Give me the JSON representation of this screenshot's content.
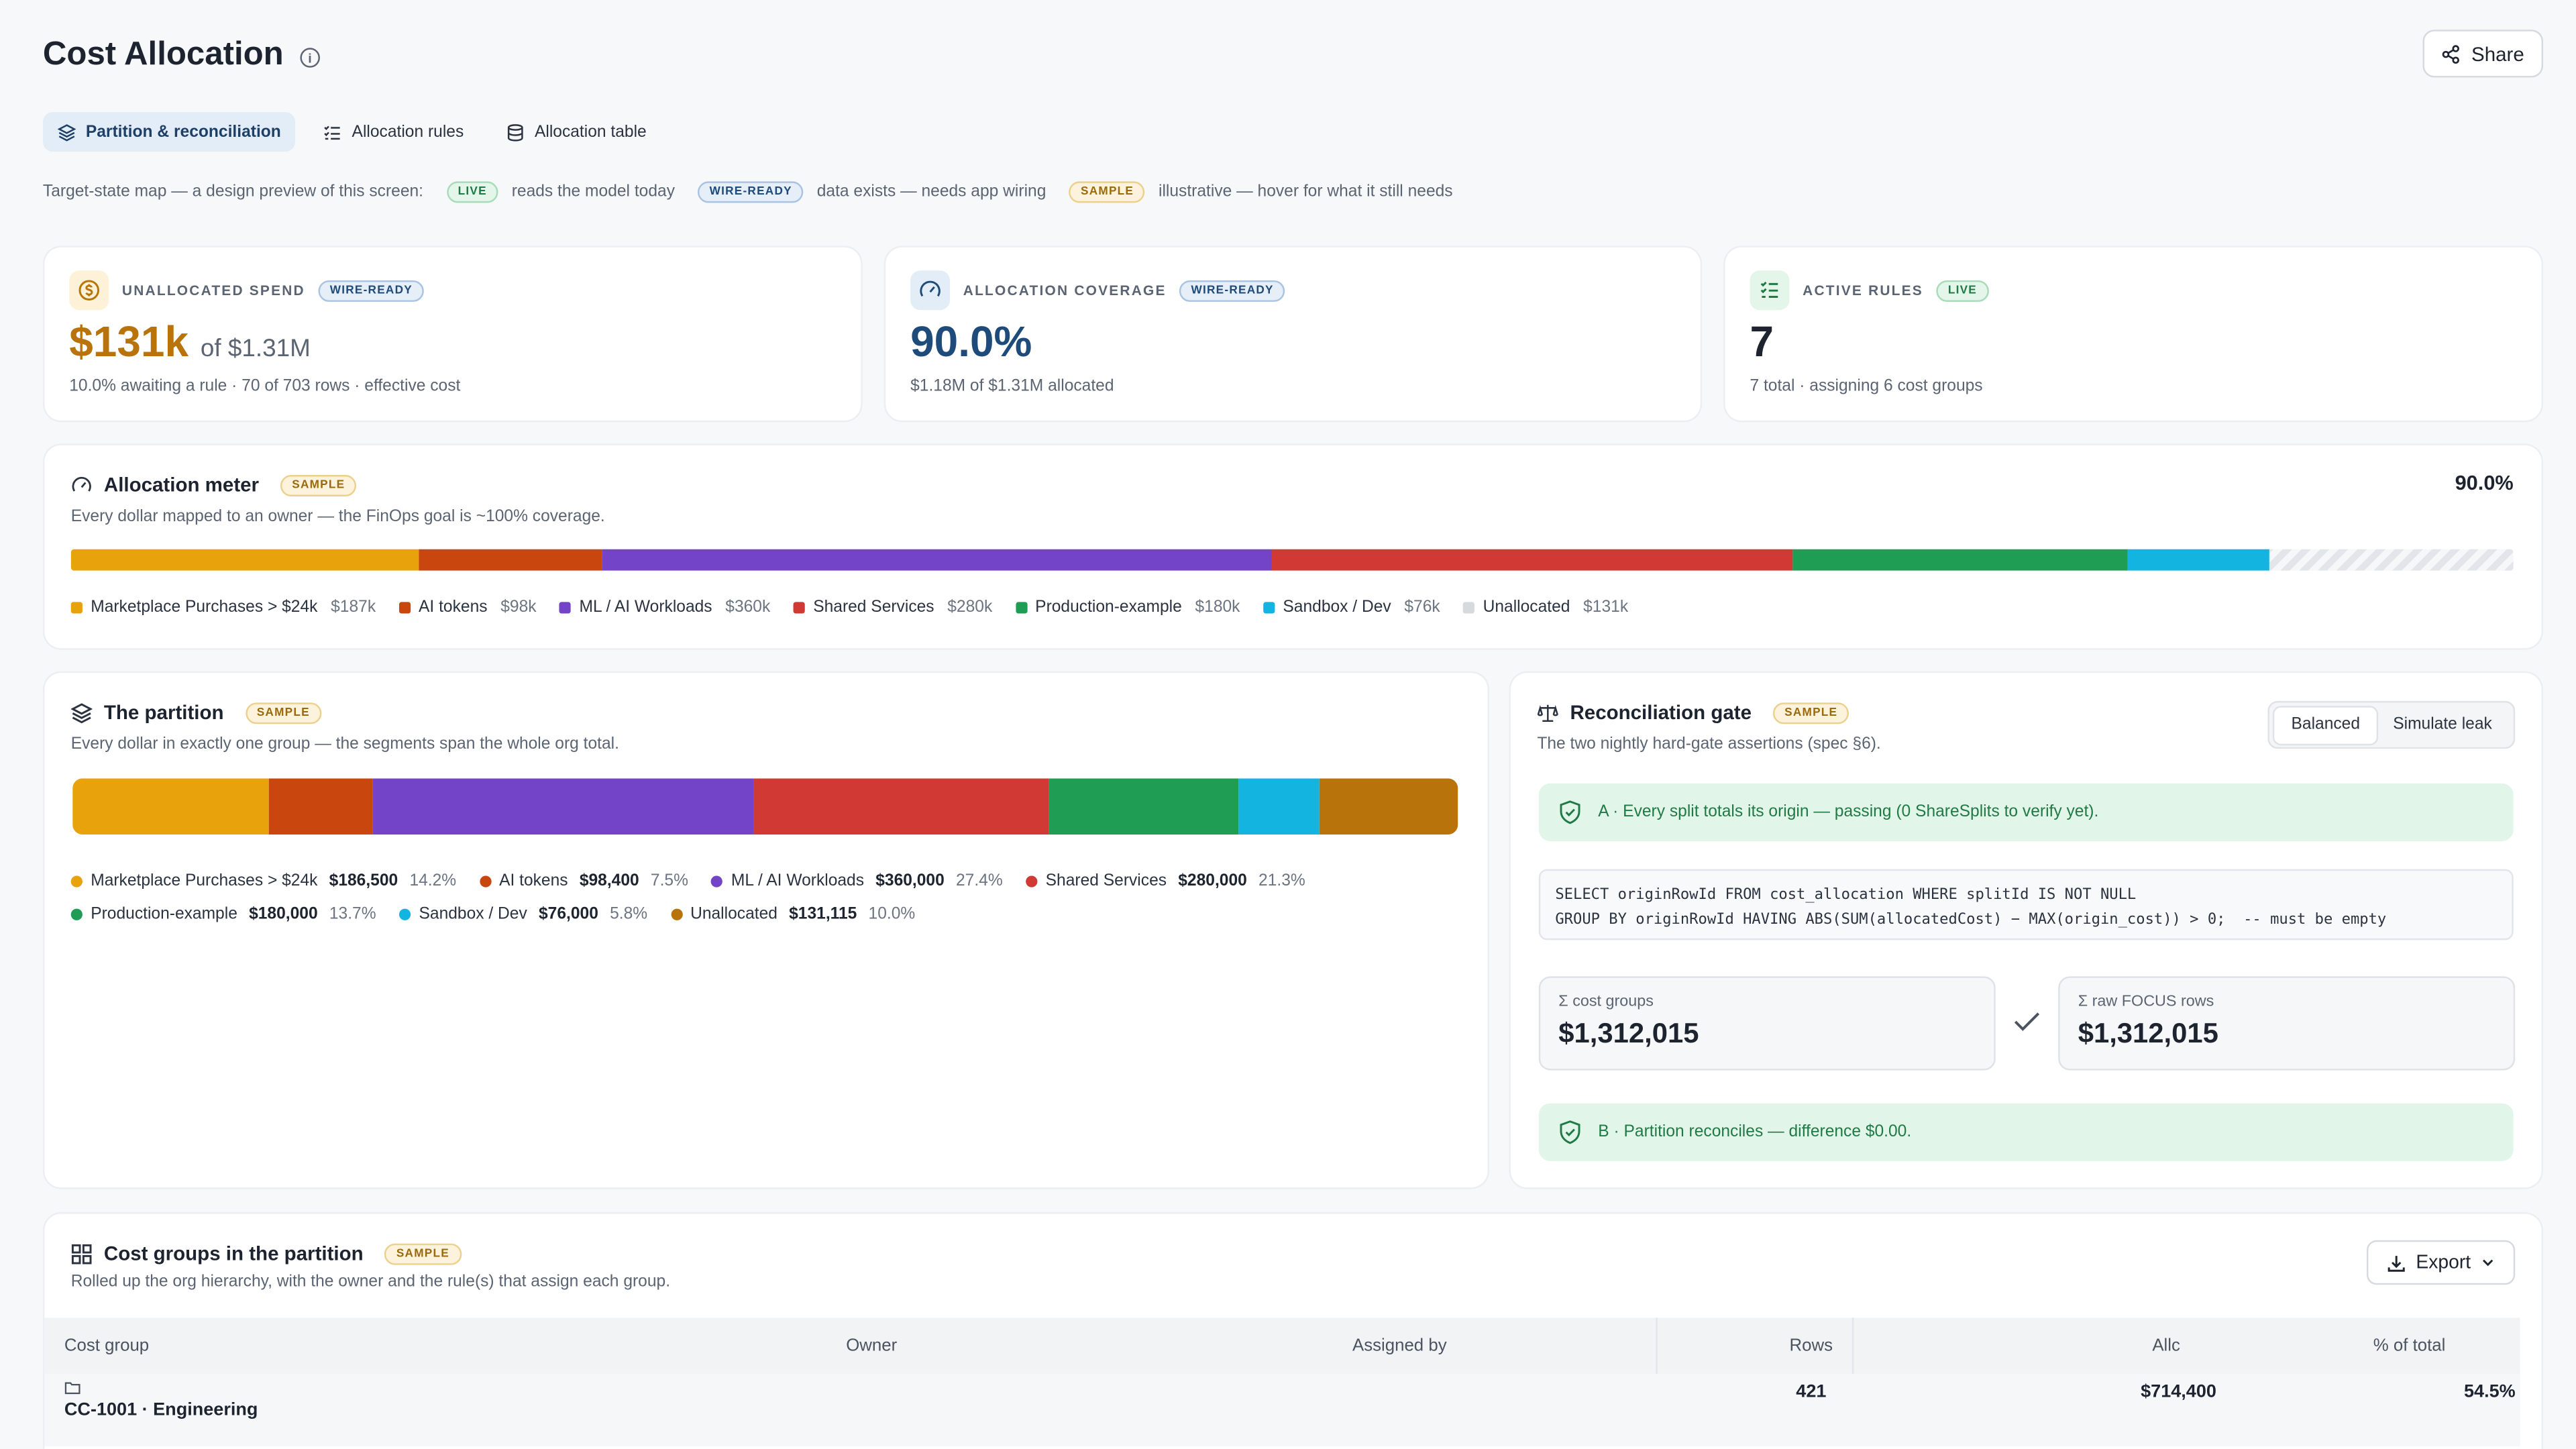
{
  "header": {
    "title": "Cost Allocation",
    "share_label": "Share"
  },
  "tabs": [
    {
      "label": "Partition & reconciliation",
      "active": true
    },
    {
      "label": "Allocation rules",
      "active": false
    },
    {
      "label": "Allocation table",
      "active": false
    }
  ],
  "legend_line": {
    "intro": "Target-state map — a design preview of this screen:",
    "live": {
      "badge": "LIVE",
      "text": "reads the model today"
    },
    "wire": {
      "badge": "WIRE-READY",
      "text": "data exists — needs app wiring"
    },
    "sample": {
      "badge": "SAMPLE",
      "text": "illustrative — hover for what it still needs"
    }
  },
  "kpis": [
    {
      "label": "UNALLOCATED SPEND",
      "badge": "WIRE-READY",
      "value": "$131k",
      "of": "of $1.31M",
      "sub": "10.0% awaiting a rule · 70 of 703 rows · effective cost",
      "color": "#b8740a"
    },
    {
      "label": "ALLOCATION COVERAGE",
      "badge": "WIRE-READY",
      "value": "90.0%",
      "sub": "$1.18M of $1.31M allocated",
      "color": "#1e4b7a"
    },
    {
      "label": "ACTIVE RULES",
      "badge": "LIVE",
      "value": "7",
      "sub": "7 total · assigning 6 cost groups",
      "color": "#1d2430"
    }
  ],
  "meter": {
    "title": "Allocation meter",
    "badge": "SAMPLE",
    "subtitle": "Every dollar mapped to an owner — the FinOps goal is ~100% coverage.",
    "percent": "90.0%",
    "items": [
      {
        "name": "Marketplace Purchases > $24k",
        "value": "$187k",
        "amount": 186500,
        "color": "#e8a20c"
      },
      {
        "name": "AI tokens",
        "value": "$98k",
        "amount": 98400,
        "color": "#c9460f"
      },
      {
        "name": "ML / AI Workloads",
        "value": "$360k",
        "amount": 360000,
        "color": "#7444c8"
      },
      {
        "name": "Shared Services",
        "value": "$280k",
        "amount": 280000,
        "color": "#d13a34"
      },
      {
        "name": "Production-example",
        "value": "$180k",
        "amount": 180000,
        "color": "#1f9d55"
      },
      {
        "name": "Sandbox / Dev",
        "value": "$76k",
        "amount": 76000,
        "color": "#14b4e0"
      },
      {
        "name": "Unallocated",
        "value": "$131k",
        "amount": 131115,
        "color": "#d6d9de"
      }
    ]
  },
  "partition": {
    "title": "The partition",
    "badge": "SAMPLE",
    "subtitle": "Every dollar in exactly one group — the segments span the whole org total.",
    "items": [
      {
        "name": "Marketplace Purchases > $24k",
        "amount_label": "$186,500",
        "pct": "14.2%",
        "amount": 186500,
        "color": "#e8a20c"
      },
      {
        "name": "AI tokens",
        "amount_label": "$98,400",
        "pct": "7.5%",
        "amount": 98400,
        "color": "#c9460f"
      },
      {
        "name": "ML / AI Workloads",
        "amount_label": "$360,000",
        "pct": "27.4%",
        "amount": 360000,
        "color": "#7444c8"
      },
      {
        "name": "Shared Services",
        "amount_label": "$280,000",
        "pct": "21.3%",
        "amount": 280000,
        "color": "#d13a34"
      },
      {
        "name": "Production-example",
        "amount_label": "$180,000",
        "pct": "13.7%",
        "amount": 180000,
        "color": "#1f9d55"
      },
      {
        "name": "Sandbox / Dev",
        "amount_label": "$76,000",
        "pct": "5.8%",
        "amount": 76000,
        "color": "#14b4e0"
      },
      {
        "name": "Unallocated",
        "amount_label": "$131,115",
        "pct": "10.0%",
        "amount": 131115,
        "color": "#b8740a"
      }
    ]
  },
  "gate": {
    "title": "Reconciliation gate",
    "badge": "SAMPLE",
    "subtitle": "The two nightly hard-gate assertions (spec §6).",
    "toggle": [
      "Balanced",
      "Simulate leak"
    ],
    "assert_a": "A · Every split totals its origin — passing (0 ShareSplits to verify yet).",
    "sql": "SELECT originRowId FROM cost_allocation WHERE splitId IS NOT NULL\nGROUP BY originRowId HAVING ABS(SUM(allocatedCost) − MAX(origin_cost)) > 0;  -- must be empty",
    "left_label": "Σ cost groups",
    "left_value": "$1,312,015",
    "right_label": "Σ raw FOCUS rows",
    "right_value": "$1,312,015",
    "assert_b": "B · Partition reconciles — difference $0.00."
  },
  "groups": {
    "title": "Cost groups in the partition",
    "badge": "SAMPLE",
    "subtitle": "Rolled up the org hierarchy, with the owner and the rule(s) that assign each group.",
    "export_label": "Export",
    "columns": [
      "Cost group",
      "Owner",
      "Assigned by",
      "Rows",
      "Allc",
      "% of total"
    ],
    "rows": [
      {
        "group": "CC-1001 · Engineering",
        "owner": "",
        "assigned_by": "",
        "rows": "421",
        "alloc": "$714,400",
        "pct": "54.5%"
      }
    ]
  }
}
